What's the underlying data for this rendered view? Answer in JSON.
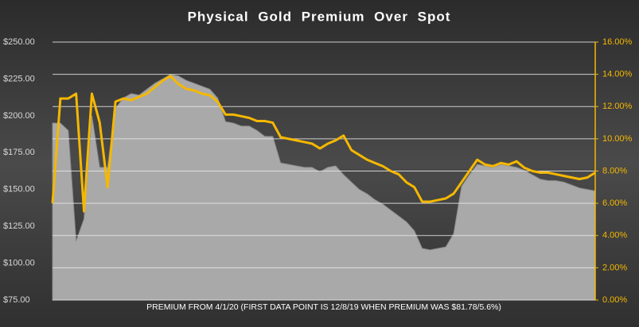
{
  "chart_data": {
    "type": "line_area",
    "title": "Physical Gold Premium Over Spot",
    "x_label": "PREMIUM FROM 4/1/20 (FIRST DATA POINT IS 12/8/19 WHEN PREMIUM WAS $81.78/5.6%)",
    "categories": [
      null,
      null,
      null,
      null,
      null,
      null,
      null,
      null,
      null,
      null,
      null,
      null,
      null,
      null,
      null,
      null,
      null,
      null,
      null,
      null,
      null,
      null,
      null,
      null,
      null,
      null,
      null,
      null,
      null,
      null,
      null,
      null,
      null,
      null,
      null,
      null,
      null,
      null,
      null,
      null,
      null,
      null,
      null,
      null,
      null,
      null,
      null,
      null,
      null,
      null,
      null,
      null,
      null,
      null,
      null,
      null,
      null,
      null,
      null,
      null,
      null,
      null,
      null,
      null,
      null,
      null,
      null,
      null,
      null,
      null
    ],
    "series": [
      {
        "kind": "area",
        "color": "#a9a9a9",
        "axis": "y",
        "values": [
          195,
          195,
          190,
          115,
          130,
          200,
          165,
          165,
          205,
          212,
          215,
          214,
          218,
          222,
          225,
          228,
          227,
          224,
          222,
          220,
          218,
          212,
          196,
          195,
          193,
          193,
          190,
          186,
          186,
          168,
          167,
          166,
          165,
          165,
          162,
          165,
          166,
          160,
          155,
          150,
          147,
          143,
          140,
          136,
          132,
          128,
          122,
          110,
          109,
          110,
          111,
          120,
          152,
          160,
          167,
          166,
          165,
          167,
          166,
          165,
          163,
          160,
          157,
          156,
          156,
          155,
          153,
          151,
          150,
          149
        ]
      },
      {
        "kind": "line",
        "color": "#f5b800",
        "axis": "y2",
        "values": [
          6.0,
          12.5,
          12.5,
          12.8,
          5.5,
          12.8,
          11,
          7,
          12.3,
          12.5,
          12.4,
          12.6,
          12.8,
          13.2,
          13.6,
          13.9,
          13.4,
          13.1,
          13.0,
          12.8,
          12.7,
          12.3,
          11.5,
          11.5,
          11.4,
          11.3,
          11.1,
          11.1,
          11.0,
          10.1,
          10.0,
          9.9,
          9.8,
          9.7,
          9.4,
          9.7,
          9.9,
          10.2,
          9.3,
          9.0,
          8.7,
          8.5,
          8.3,
          8.0,
          7.8,
          7.3,
          7.0,
          6.1,
          6.1,
          6.2,
          6.3,
          6.6,
          7.3,
          8.0,
          8.7,
          8.4,
          8.3,
          8.5,
          8.4,
          8.6,
          8.2,
          8.0,
          7.9,
          7.9,
          7.8,
          7.7,
          7.6,
          7.5,
          7.6,
          7.9
        ]
      }
    ],
    "ylim": [
      75,
      250
    ],
    "yticks": [
      {
        "value": 75,
        "label": "$75.00"
      },
      {
        "value": 100,
        "label": "$100.00"
      },
      {
        "value": 125,
        "label": "$125.00"
      },
      {
        "value": 150,
        "label": "$150.00"
      },
      {
        "value": 175,
        "label": "$175.00"
      },
      {
        "value": 200,
        "label": "$200.00"
      },
      {
        "value": 225,
        "label": "$225.00"
      },
      {
        "value": 250,
        "label": "$250.00"
      }
    ],
    "y2lim": [
      0,
      16
    ],
    "y2ticks": [
      {
        "value": 0,
        "label": "0.00%"
      },
      {
        "value": 2,
        "label": "2.00%"
      },
      {
        "value": 4,
        "label": "4.00%"
      },
      {
        "value": 6,
        "label": "6.00%"
      },
      {
        "value": 8,
        "label": "8.00%"
      },
      {
        "value": 10,
        "label": "10.00%"
      },
      {
        "value": 12,
        "label": "12.00%"
      },
      {
        "value": 14,
        "label": "14.00%"
      },
      {
        "value": 16,
        "label": "16.00%"
      }
    ],
    "grid": true
  }
}
